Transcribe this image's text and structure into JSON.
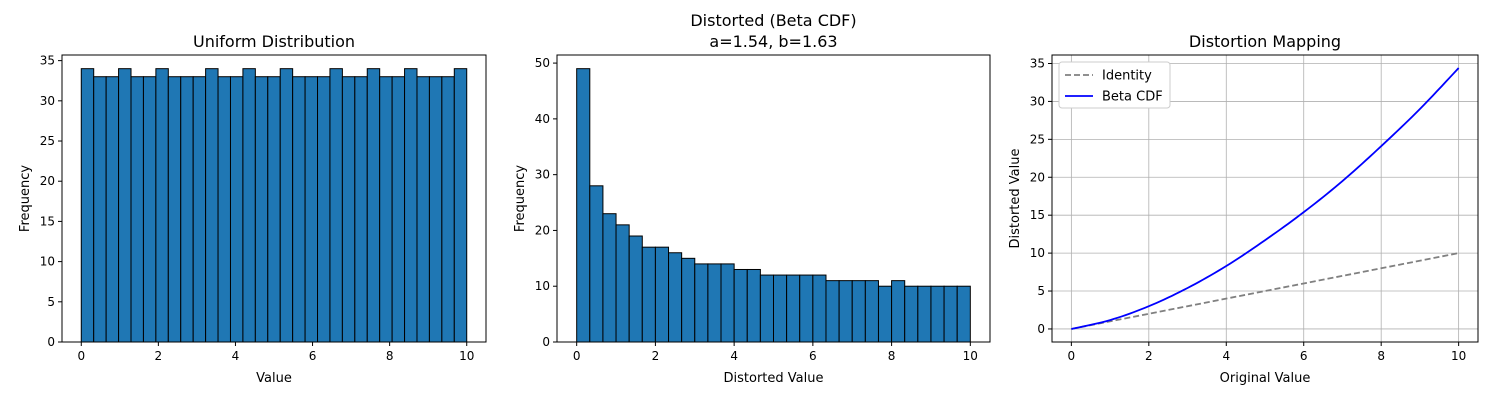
{
  "chart_data": [
    {
      "type": "bar",
      "title": "Uniform Distribution",
      "subtitle": "",
      "xlabel": "Value",
      "ylabel": "Frequency",
      "xlim": [
        -0.5,
        10.5
      ],
      "ylim": [
        0,
        35.7
      ],
      "xticks": [
        0,
        2,
        4,
        6,
        8,
        10
      ],
      "yticks": [
        0,
        5,
        10,
        15,
        20,
        25,
        30,
        35
      ],
      "bin_range": [
        0,
        10
      ],
      "bar_color": "#1f77b4",
      "edge_color": "#000000",
      "values": [
        34,
        33,
        33,
        34,
        33,
        33,
        34,
        33,
        33,
        33,
        34,
        33,
        33,
        34,
        33,
        33,
        34,
        33,
        33,
        33,
        34,
        33,
        33,
        34,
        33,
        33,
        34,
        33,
        33,
        33,
        34
      ],
      "grid": false
    },
    {
      "type": "bar",
      "title": "Distorted (Beta CDF)",
      "subtitle": "a=1.54, b=1.63",
      "xlabel": "Distorted Value",
      "ylabel": "Frequency",
      "xlim": [
        -0.5,
        10.5
      ],
      "ylim": [
        0,
        51.45
      ],
      "xticks": [
        0,
        2,
        4,
        6,
        8,
        10
      ],
      "yticks": [
        0,
        10,
        20,
        30,
        40,
        50
      ],
      "bin_range": [
        0,
        10
      ],
      "bar_color": "#1f77b4",
      "edge_color": "#000000",
      "values": [
        49,
        28,
        23,
        21,
        19,
        17,
        17,
        16,
        15,
        14,
        14,
        14,
        13,
        13,
        12,
        12,
        12,
        12,
        12,
        11,
        11,
        11,
        11,
        10,
        11,
        10,
        10,
        10,
        10,
        10
      ],
      "grid": false
    },
    {
      "type": "line",
      "title": "Distortion Mapping",
      "subtitle": "",
      "xlabel": "Original Value",
      "ylabel": "Distorted Value",
      "xlim": [
        -0.5,
        10.5
      ],
      "ylim": [
        -1.72,
        36.12
      ],
      "xticks": [
        0,
        2,
        4,
        6,
        8,
        10
      ],
      "yticks": [
        0,
        5,
        10,
        15,
        20,
        25,
        30,
        35
      ],
      "grid": true,
      "legend": "top-left",
      "series": [
        {
          "name": "Identity",
          "color": "#808080",
          "dash": "dashed",
          "x": [
            0,
            10
          ],
          "y": [
            0,
            10
          ]
        },
        {
          "name": "Beta CDF",
          "color": "#0000ff",
          "dash": "solid",
          "x": [
            0,
            1,
            2,
            3,
            4,
            5,
            6,
            7,
            8,
            9,
            10
          ],
          "y": [
            0,
            1.17,
            3.0,
            5.4,
            8.3,
            11.7,
            15.4,
            19.5,
            24.1,
            29.0,
            34.4
          ]
        }
      ]
    }
  ]
}
